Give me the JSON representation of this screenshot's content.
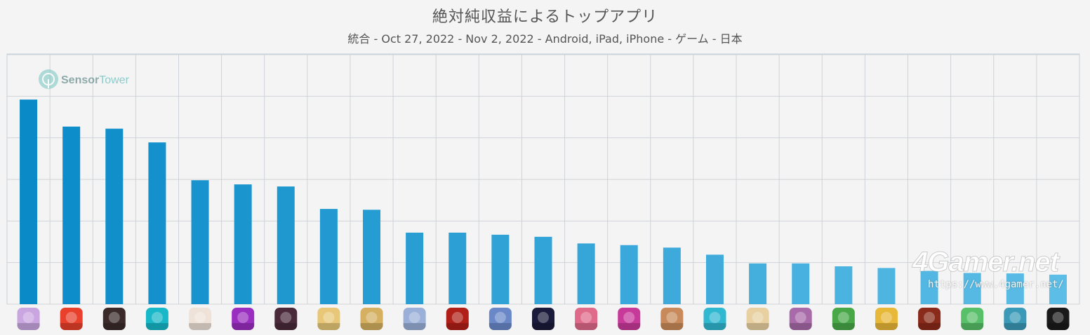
{
  "header": {
    "title": "絶対純収益によるトップアプリ",
    "subtitle": "統合 - Oct 27, 2022 - Nov 2, 2022 - Android, iPad, iPhone - ゲーム - 日本"
  },
  "watermarks": {
    "sensortower_a": "Sensor",
    "sensortower_b": "Tower",
    "site_logo": "4Gamer.net",
    "site_url": "https://www.4gamer.net/"
  },
  "colors": {
    "bar_start": "#0a8bc8",
    "bar_end": "#5cbde6",
    "grid": "#cfd3d8",
    "background": "#f4f4f4"
  },
  "chart_data": {
    "type": "bar",
    "title": "絶対純収益によるトップアプリ",
    "subtitle": "統合 - Oct 27, 2022 - Nov 2, 2022 - Android, iPad, iPhone - ゲーム - 日本",
    "xlabel": "",
    "ylabel": "",
    "y_tick_labels_shown": false,
    "grid": true,
    "ylim": [
      0,
      6
    ],
    "note": "Y axis has no printed ticks; values are in gridline units (6 gridline intervals).",
    "values": [
      4.92,
      4.27,
      4.22,
      3.89,
      2.98,
      2.88,
      2.83,
      2.29,
      2.27,
      1.72,
      1.72,
      1.67,
      1.62,
      1.46,
      1.42,
      1.36,
      1.19,
      0.98,
      0.98,
      0.91,
      0.87,
      0.8,
      0.75,
      0.74,
      0.71
    ],
    "icons": [
      "app-icon-1",
      "app-icon-2",
      "app-icon-3",
      "app-icon-4",
      "app-icon-5",
      "app-icon-6",
      "app-icon-7",
      "app-icon-8",
      "app-icon-9",
      "app-icon-10",
      "app-icon-11",
      "app-icon-12",
      "app-icon-13",
      "app-icon-14",
      "app-icon-15",
      "app-icon-16",
      "app-icon-17",
      "app-icon-18",
      "app-icon-19",
      "app-icon-20",
      "app-icon-21",
      "app-icon-22",
      "app-icon-23",
      "app-icon-24",
      "app-icon-25"
    ],
    "icon_colors": [
      "#c9a6e0",
      "#e8402a",
      "#3a2a2a",
      "#18b8c8",
      "#efe2d8",
      "#9a2ec0",
      "#4a2a3a",
      "#e8c878",
      "#d4b060",
      "#9ab0d8",
      "#b02018",
      "#6a88c8",
      "#1a1a3a",
      "#e06a8a",
      "#c83a9a",
      "#c88a5a",
      "#30b8d0",
      "#e8d0a0",
      "#a86aa8",
      "#48a848",
      "#e8b838",
      "#8a2a1a",
      "#58c068",
      "#3a9ab8",
      "#1a1a1a"
    ]
  }
}
